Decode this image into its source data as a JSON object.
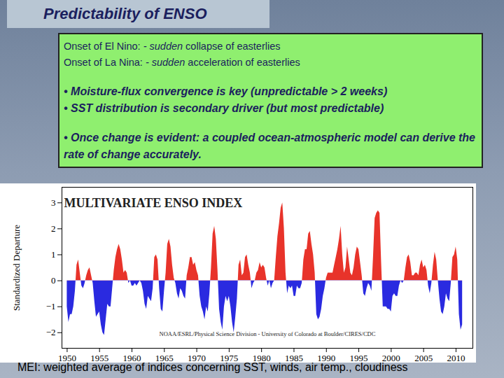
{
  "header": {
    "title": "Predictability of ENSO"
  },
  "text_box": {
    "onset_lines": [
      [
        "Onset of El Nino:  ",
        "- sudden",
        " collapse of easterlies"
      ],
      [
        "Onset of La Nina:  ",
        "- sudden",
        " acceleration of easterlies"
      ]
    ],
    "bullets": [
      [
        "• Moisture-flux convergence is key (unpredictable > 2 weeks)",
        "• SST distribution is secondary driver (but most predictable)"
      ],
      [
        "• Once change is evident: a coupled ocean-atmospheric model can derive the rate of change accurately."
      ]
    ]
  },
  "chart_data": {
    "type": "area",
    "title": "MULTIVARIATE ENSO INDEX",
    "y_label": "Standardized Departure",
    "annotations": [
      "NOAA/ESRL/Physical Science Division - University of Colorado at Boulder/CIRES/CDC"
    ],
    "x": [
      1950,
      1950.25,
      1950.5,
      1950.75,
      1951,
      1951.25,
      1951.5,
      1951.75,
      1952,
      1952.25,
      1952.5,
      1952.75,
      1953,
      1953.25,
      1953.5,
      1953.75,
      1954,
      1954.25,
      1954.5,
      1954.75,
      1955,
      1955.25,
      1955.5,
      1955.75,
      1956,
      1956.25,
      1956.5,
      1956.75,
      1957,
      1957.25,
      1957.5,
      1957.75,
      1958,
      1958.25,
      1958.5,
      1958.75,
      1959,
      1959.25,
      1959.5,
      1959.75,
      1960,
      1960.25,
      1960.5,
      1960.75,
      1961,
      1961.25,
      1961.5,
      1961.75,
      1962,
      1962.25,
      1962.5,
      1962.75,
      1963,
      1963.25,
      1963.5,
      1963.75,
      1964,
      1964.25,
      1964.5,
      1964.75,
      1965,
      1965.25,
      1965.5,
      1965.75,
      1966,
      1966.25,
      1966.5,
      1966.75,
      1967,
      1967.25,
      1967.5,
      1967.75,
      1968,
      1968.25,
      1968.5,
      1968.75,
      1969,
      1969.25,
      1969.5,
      1969.75,
      1970,
      1970.25,
      1970.5,
      1970.75,
      1971,
      1971.25,
      1971.5,
      1971.75,
      1972,
      1972.25,
      1972.5,
      1972.75,
      1973,
      1973.25,
      1973.5,
      1973.75,
      1974,
      1974.25,
      1974.5,
      1974.75,
      1975,
      1975.25,
      1975.5,
      1975.75,
      1976,
      1976.25,
      1976.5,
      1976.75,
      1977,
      1977.25,
      1977.5,
      1977.75,
      1978,
      1978.25,
      1978.5,
      1978.75,
      1979,
      1979.25,
      1979.5,
      1979.75,
      1980,
      1980.25,
      1980.5,
      1980.75,
      1981,
      1981.25,
      1981.5,
      1981.75,
      1982,
      1982.25,
      1982.5,
      1982.75,
      1983,
      1983.25,
      1983.5,
      1983.75,
      1984,
      1984.25,
      1984.5,
      1984.75,
      1985,
      1985.25,
      1985.5,
      1985.75,
      1986,
      1986.25,
      1986.5,
      1986.75,
      1987,
      1987.25,
      1987.5,
      1987.75,
      1988,
      1988.25,
      1988.5,
      1988.75,
      1989,
      1989.25,
      1989.5,
      1989.75,
      1990,
      1990.25,
      1990.5,
      1990.75,
      1991,
      1991.25,
      1991.5,
      1991.75,
      1992,
      1992.25,
      1992.5,
      1992.75,
      1993,
      1993.25,
      1993.5,
      1993.75,
      1994,
      1994.25,
      1994.5,
      1994.75,
      1995,
      1995.25,
      1995.5,
      1995.75,
      1996,
      1996.25,
      1996.5,
      1996.75,
      1997,
      1997.25,
      1997.5,
      1997.75,
      1998,
      1998.25,
      1998.5,
      1998.75,
      1999,
      1999.25,
      1999.5,
      1999.75,
      2000,
      2000.25,
      2000.5,
      2000.75,
      2001,
      2001.25,
      2001.5,
      2001.75,
      2002,
      2002.25,
      2002.5,
      2002.75,
      2003,
      2003.25,
      2003.5,
      2003.75,
      2004,
      2004.25,
      2004.5,
      2004.75,
      2005,
      2005.25,
      2005.5,
      2005.75,
      2006,
      2006.25,
      2006.5,
      2006.75,
      2007,
      2007.25,
      2007.5,
      2007.75,
      2008,
      2008.25,
      2008.5,
      2008.75,
      2009,
      2009.25,
      2009.5,
      2009.75,
      2010,
      2010.25,
      2010.5,
      2010.75,
      2011
    ],
    "values": [
      -1.0,
      -1.6,
      -1.3,
      -1.3,
      -1.0,
      -0.4,
      0.6,
      0.8,
      0.3,
      -0.2,
      -0.3,
      -0.1,
      0.2,
      0.4,
      0.5,
      0.2,
      -0.1,
      -0.8,
      -1.4,
      -1.3,
      -1.2,
      -1.7,
      -2.0,
      -2.1,
      -1.5,
      -0.9,
      -1.0,
      -1.0,
      -0.3,
      0.4,
      0.9,
      1.2,
      1.4,
      1.2,
      0.8,
      0.3,
      0.4,
      0.3,
      -0.1,
      0.0,
      -0.2,
      -0.2,
      -0.1,
      -0.2,
      -0.1,
      0.0,
      -0.1,
      -0.4,
      -0.9,
      -1.1,
      -0.6,
      -0.7,
      -0.8,
      -0.3,
      0.9,
      1.0,
      0.8,
      -0.3,
      -1.1,
      -1.2,
      -0.4,
      0.3,
      1.4,
      1.6,
      1.3,
      0.6,
      0.1,
      -0.1,
      -0.5,
      -0.7,
      -0.3,
      -0.4,
      -0.6,
      -0.7,
      0.2,
      0.5,
      0.9,
      0.9,
      0.6,
      0.7,
      0.4,
      0.2,
      -0.6,
      -1.0,
      -1.2,
      -1.5,
      -1.0,
      -1.2,
      -0.5,
      0.5,
      1.8,
      2.1,
      1.6,
      0.4,
      -1.1,
      -1.6,
      -1.9,
      -1.0,
      -0.6,
      -0.8,
      -0.6,
      -1.0,
      -1.6,
      -2.0,
      -1.4,
      -0.7,
      0.6,
      0.8,
      0.2,
      0.3,
      0.9,
      1.0,
      0.6,
      0.3,
      -0.3,
      -0.1,
      0.0,
      0.3,
      0.4,
      0.7,
      0.5,
      0.6,
      0.5,
      0.1,
      -0.2,
      0.0,
      -0.3,
      -0.1,
      0.0,
      0.9,
      1.7,
      2.2,
      2.8,
      3.0,
      2.0,
      0.3,
      -0.5,
      -0.2,
      -0.3,
      -0.2,
      -0.6,
      -0.6,
      -0.2,
      -0.3,
      -0.3,
      -0.1,
      0.8,
      1.2,
      1.2,
      1.8,
      1.9,
      1.4,
      1.0,
      0.3,
      -1.3,
      -1.5,
      -1.4,
      -1.1,
      -0.6,
      -0.3,
      0.1,
      0.3,
      0.3,
      0.3,
      0.3,
      0.6,
      0.9,
      1.2,
      1.6,
      2.1,
      1.0,
      0.3,
      0.5,
      1.3,
      0.8,
      0.3,
      0.2,
      0.5,
      1.0,
      1.3,
      1.2,
      0.7,
      0.2,
      -0.5,
      -0.6,
      -0.3,
      -0.1,
      -0.2,
      -0.4,
      0.9,
      2.4,
      2.6,
      2.7,
      2.6,
      0.7,
      -1.0,
      -1.0,
      -1.0,
      -1.1,
      -1.1,
      -1.2,
      -0.6,
      -0.5,
      -0.6,
      -0.6,
      -0.2,
      0.0,
      -0.1,
      0.0,
      0.5,
      0.9,
      1.0,
      0.7,
      0.2,
      0.2,
      0.3,
      0.3,
      0.2,
      0.6,
      0.8,
      0.5,
      0.6,
      0.4,
      -0.2,
      -0.5,
      -0.1,
      0.6,
      1.1,
      0.8,
      0.0,
      -0.7,
      -1.2,
      -1.3,
      -1.0,
      -0.5,
      -0.7,
      -0.8,
      -0.1,
      0.9,
      1.0,
      1.3,
      0.8,
      -1.3,
      -1.9,
      -1.7
    ],
    "colors": [
      "#e8332a",
      "#2a2ae0"
    ],
    "xlim": [
      1949.2,
      2012.6
    ],
    "xticks": [
      1950,
      1955,
      1960,
      1965,
      1970,
      1975,
      1980,
      1985,
      1990,
      1995,
      2000,
      2005,
      2010
    ],
    "ylim": [
      -2.6,
      3.6
    ],
    "yticks": [
      {
        "value": -2,
        "label": "−2"
      },
      {
        "value": -1,
        "label": "−1"
      },
      0,
      1,
      2,
      3
    ],
    "grid": false
  },
  "caption": "MEI: weighted average of indices concerning SST, winds, air temp., cloudiness"
}
